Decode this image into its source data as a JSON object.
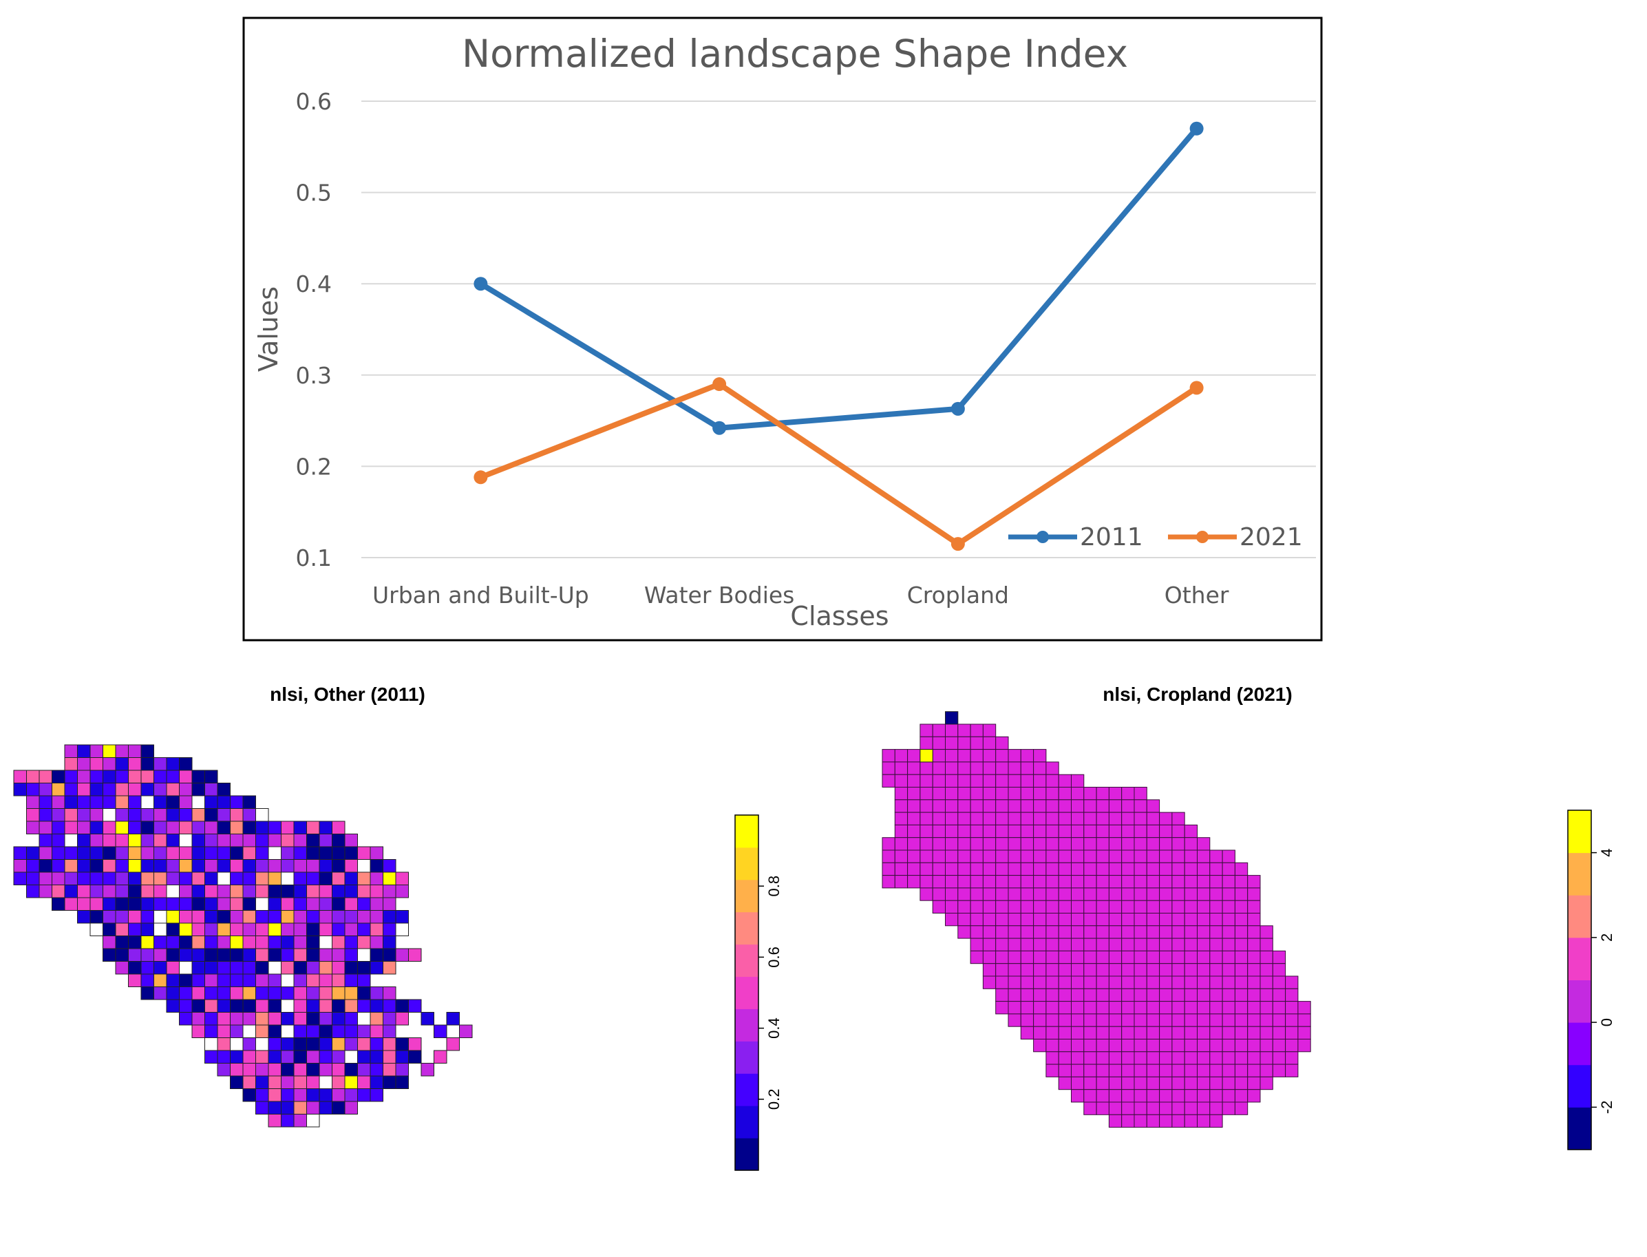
{
  "chart_data": [
    {
      "type": "line",
      "title": "Normalized landscape Shape Index",
      "xlabel": "Classes",
      "ylabel": "Values",
      "categories": [
        "Urban and Built-Up",
        "Water Bodies",
        "Cropland",
        "Other"
      ],
      "ylim": [
        0.1,
        0.6
      ],
      "yticks": [
        "0.1",
        "0.2",
        "0.3",
        "0.4",
        "0.5",
        "0.6"
      ],
      "grid": true,
      "legend_position": "bottom-right",
      "series": [
        {
          "name": "2011",
          "color": "#2e75b6",
          "values": [
            0.4,
            0.242,
            0.263,
            0.57
          ]
        },
        {
          "name": "2021",
          "color": "#ed7d31",
          "values": [
            0.188,
            0.29,
            0.115,
            0.286
          ]
        }
      ]
    },
    {
      "type": "heatmap",
      "title": "nlsi, Other (2011)",
      "colorbar_ticks": [
        "0.2",
        "0.4",
        "0.6",
        "0.8"
      ],
      "colorbar_range": [
        0,
        1
      ],
      "palette": [
        "#00008b",
        "#1a00e0",
        "#4400ff",
        "#8a1ff0",
        "#c42ae0",
        "#f03fc8",
        "#fa5fa8",
        "#ff8a80",
        "#ffb04a",
        "#ffd422",
        "#ffff00"
      ]
    },
    {
      "type": "heatmap",
      "title": "nlsi, Cropland (2021)",
      "colorbar_ticks": [
        "-2",
        "0",
        "2",
        "4"
      ],
      "colorbar_range": [
        -3,
        5
      ],
      "fill_color": "#dd22dd",
      "palette": [
        "#00008b",
        "#3300ff",
        "#8800ff",
        "#c42ae0",
        "#f03fc8",
        "#ff8a80",
        "#ffb04a",
        "#ffff00"
      ]
    }
  ]
}
